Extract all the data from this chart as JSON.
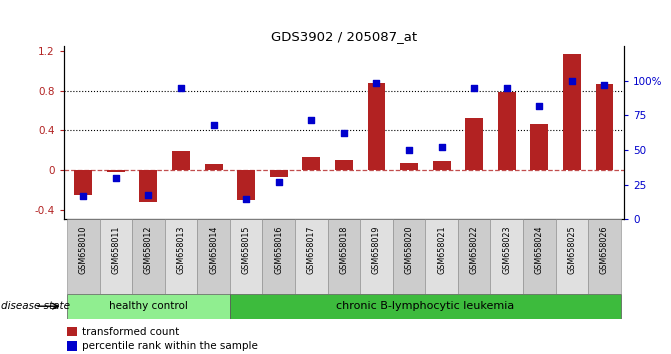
{
  "title": "GDS3902 / 205087_at",
  "samples": [
    "GSM658010",
    "GSM658011",
    "GSM658012",
    "GSM658013",
    "GSM658014",
    "GSM658015",
    "GSM658016",
    "GSM658017",
    "GSM658018",
    "GSM658019",
    "GSM658020",
    "GSM658021",
    "GSM658022",
    "GSM658023",
    "GSM658024",
    "GSM658025",
    "GSM658026"
  ],
  "bar_values": [
    -0.25,
    -0.02,
    -0.32,
    0.19,
    0.06,
    -0.3,
    -0.07,
    0.13,
    0.1,
    0.88,
    0.07,
    0.09,
    0.52,
    0.79,
    0.46,
    1.17,
    0.87
  ],
  "dot_values_pct": [
    17,
    30,
    18,
    95,
    68,
    15,
    27,
    72,
    62,
    98,
    50,
    52,
    95,
    95,
    82,
    100,
    97
  ],
  "bar_color": "#b22222",
  "dot_color": "#0000cc",
  "ylim_left": [
    -0.5,
    1.25
  ],
  "ylim_right": [
    0,
    125
  ],
  "yticks_left": [
    -0.4,
    0.0,
    0.4,
    0.8,
    1.2
  ],
  "yticks_right": [
    0,
    25,
    50,
    75,
    100
  ],
  "ytick_labels_right": [
    "0",
    "25",
    "50",
    "75",
    "100%"
  ],
  "hlines": [
    0.4,
    0.8
  ],
  "healthy_count": 5,
  "leukemia_count": 12,
  "group1_label": "healthy control",
  "group2_label": "chronic B-lymphocytic leukemia",
  "group1_color": "#90ee90",
  "group2_color": "#3dbb3d",
  "disease_state_label": "disease state",
  "legend_bar_label": "transformed count",
  "legend_dot_label": "percentile rank within the sample",
  "bg_color": "#ffffff"
}
